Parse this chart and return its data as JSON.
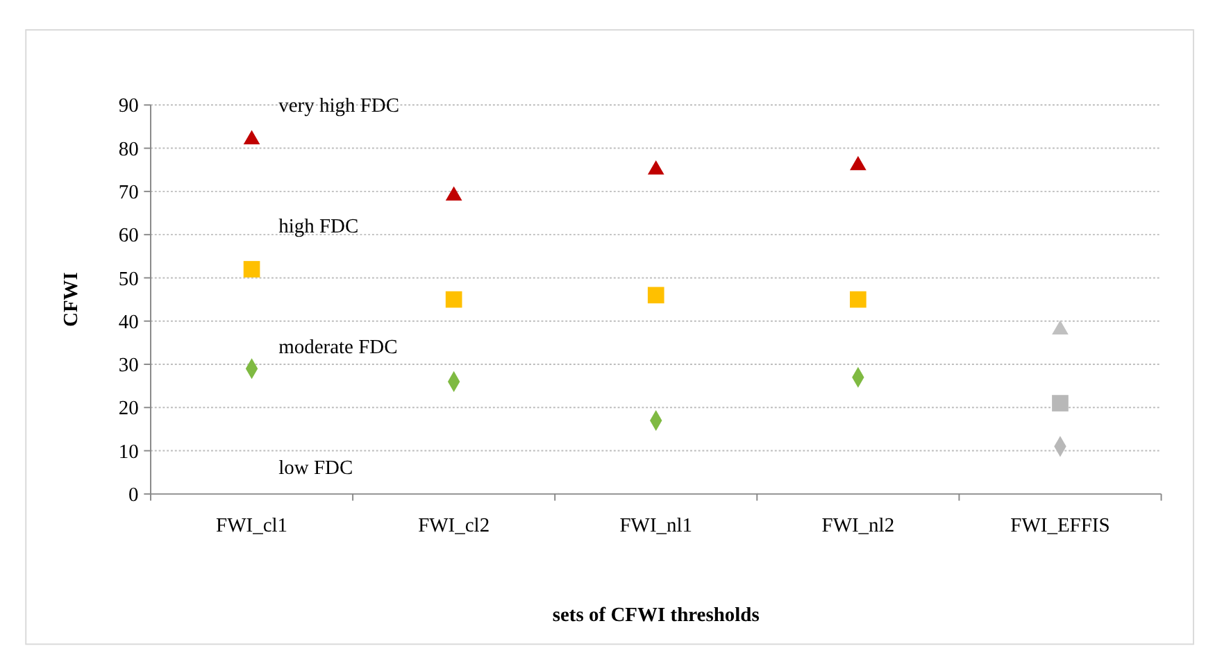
{
  "chart_data": {
    "type": "scatter",
    "xlabel": "sets of CFWI thresholds",
    "ylabel": "CFWI",
    "categories": [
      "FWI_cl1",
      "FWI_cl2",
      "FWI_nl1",
      "FWI_nl2",
      "FWI_EFFIS"
    ],
    "series": [
      {
        "marker": "triangle",
        "colors": [
          "#c00000",
          "#c00000",
          "#c00000",
          "#c00000",
          "#c0c0c0"
        ],
        "values": [
          82,
          69,
          75,
          76,
          38
        ]
      },
      {
        "marker": "square",
        "colors": [
          "#ffc000",
          "#ffc000",
          "#ffc000",
          "#ffc000",
          "#b8b8b8"
        ],
        "values": [
          52,
          45,
          46,
          45,
          21
        ]
      },
      {
        "marker": "diamond",
        "colors": [
          "#7fba42",
          "#7fba42",
          "#7fba42",
          "#7fba42",
          "#b8b8b8"
        ],
        "values": [
          29,
          26,
          17,
          27,
          11
        ]
      }
    ],
    "ylim": [
      0,
      90
    ],
    "yticks": [
      0,
      10,
      20,
      30,
      40,
      50,
      60,
      70,
      80,
      90
    ],
    "grid": "y",
    "annotations": [
      "very high FDC",
      "high FDC",
      "moderate FDC",
      "low FDC"
    ]
  }
}
